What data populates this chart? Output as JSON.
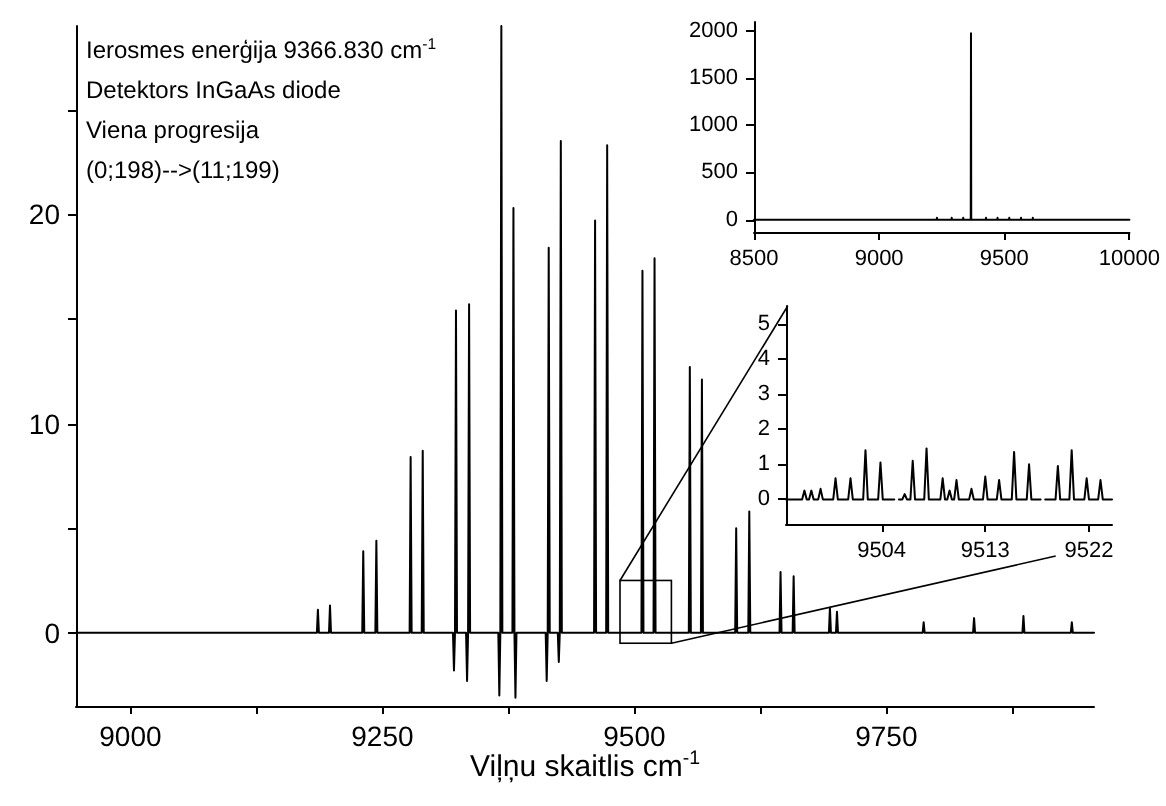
{
  "chart_data": [
    {
      "type": "line",
      "xlabel": "Viļņu skaitlis cm$^{-1}$",
      "annotations": [
        "Ierosmes enerģija 9366.830 cm$^{-1}$",
        "Detektors InGaAs diode",
        "Viena progresija",
        "(0;198)-->(11;199)"
      ],
      "x": [
        8946,
        9185,
        9186,
        9187,
        9197,
        9198,
        9199,
        9230,
        9231,
        9232,
        9243,
        9244,
        9245,
        9277,
        9278,
        9279,
        9289,
        9290,
        9291,
        9320,
        9321,
        9322,
        9323,
        9324,
        9333,
        9334,
        9335,
        9336,
        9337,
        9365,
        9366,
        9367,
        9368,
        9369,
        9379,
        9380,
        9381,
        9382,
        9383,
        9412,
        9413,
        9414,
        9415,
        9416,
        9424,
        9425,
        9426,
        9427,
        9428,
        9460,
        9461,
        9462,
        9472,
        9473,
        9474,
        9507,
        9508,
        9509,
        9519,
        9520,
        9521,
        9554,
        9555,
        9556,
        9566,
        9567,
        9568,
        9600,
        9601,
        9602,
        9613,
        9614,
        9615,
        9644,
        9645,
        9646,
        9657,
        9658,
        9659,
        9693,
        9694,
        9695,
        9700,
        9701,
        9702,
        9786,
        9787,
        9788,
        9836,
        9837,
        9838,
        9885,
        9886,
        9887,
        9933,
        9934,
        9935,
        9956
      ],
      "series": [
        {
          "color": "#000000",
          "values": [
            0,
            0,
            1.1,
            0,
            0,
            1.3,
            0,
            0,
            3.9,
            0,
            0,
            4.4,
            0,
            0,
            8.4,
            0,
            0,
            8.7,
            0,
            0,
            -1.8,
            0,
            15.4,
            0,
            0,
            -2.3,
            0,
            15.7,
            0,
            0,
            -3.0,
            0,
            29,
            0,
            0,
            20.3,
            0,
            -3.1,
            0,
            0,
            -2.3,
            0,
            18.4,
            0,
            0,
            -1.4,
            0,
            23.5,
            0,
            0,
            19.7,
            0,
            0,
            23.3,
            0,
            0,
            17.3,
            0,
            0,
            17.9,
            0,
            0,
            12.7,
            0,
            0,
            12.1,
            0,
            0,
            5.0,
            0,
            0,
            5.8,
            0,
            0,
            2.9,
            0,
            0,
            2.7,
            0,
            0,
            1.2,
            0,
            0,
            1.0,
            0,
            0,
            0.5,
            0,
            0,
            0.7,
            0,
            0,
            0.8,
            0,
            0,
            0.5,
            0,
            0
          ]
        }
      ],
      "xlim": [
        8946,
        9956
      ],
      "ylim": [
        -3.5,
        29
      ],
      "xticks": [
        9000,
        {
          "value": 9125,
          "label": null
        },
        9250,
        {
          "value": 9375,
          "label": null
        },
        9500,
        {
          "value": 9625,
          "label": null
        },
        9750,
        {
          "value": 9875,
          "label": null
        }
      ],
      "yticks": [
        0,
        {
          "value": 5,
          "label": null
        },
        10,
        {
          "value": 15,
          "label": null
        },
        20,
        {
          "value": 25,
          "label": null
        }
      ]
    },
    {
      "type": "line",
      "x": [
        8500,
        9230,
        9231,
        9232,
        9289,
        9290,
        9291,
        9335,
        9336,
        9337,
        9366,
        9367,
        9368,
        9426,
        9427,
        9428,
        9472,
        9473,
        9474,
        9519,
        9520,
        9521,
        9566,
        9567,
        9568,
        9613,
        9614,
        9615,
        10000
      ],
      "series": [
        {
          "color": "#000000",
          "values": [
            0,
            0,
            20,
            0,
            0,
            20,
            0,
            0,
            20,
            0,
            0,
            1970,
            0,
            0,
            20,
            0,
            0,
            20,
            0,
            0,
            20,
            0,
            0,
            20,
            0,
            0,
            20,
            0,
            0
          ]
        }
      ],
      "xlim": [
        8500,
        10000
      ],
      "ylim": [
        -130,
        2090
      ],
      "xticks": [
        8500,
        9000,
        9500,
        10000
      ],
      "yticks": [
        0,
        500,
        1000,
        1500,
        2000
      ]
    },
    {
      "type": "line",
      "x": [
        9495.7,
        9497.1,
        9497.3,
        9497.5,
        9497.7,
        9497.9,
        9498.1,
        9498.5,
        9498.7,
        9498.9,
        9499.8,
        9500,
        9500.2,
        9501.1,
        9501.3,
        9501.5,
        9502.4,
        9502.6,
        9502.8,
        9503.7,
        9503.9,
        9504.1,
        9505.1,
        9505.3,
        9505.5,
        9505.8,
        9506,
        9506.2,
        9506.5,
        9506.7,
        9506.9,
        9507.7,
        9507.9,
        9508.1,
        9509.1,
        9509.3,
        9509.5,
        9509.7,
        9509.9,
        9510.1,
        9510.3,
        9510.5,
        9510.7,
        9511.6,
        9511.8,
        9512,
        9512.8,
        9513,
        9513.2,
        9514,
        9514.2,
        9514.4,
        9515.3,
        9515.5,
        9515.7,
        9516.6,
        9516.8,
        9517,
        9517.8,
        9518,
        9518.2,
        9519.1,
        9519.3,
        9519.5,
        9520.3,
        9520.5,
        9520.7,
        9521.6,
        9521.8,
        9522,
        9522.8,
        9523,
        9523.2,
        9524
      ],
      "series": [
        {
          "color": "#000000",
          "values": [
            0,
            0,
            0.25,
            0,
            0,
            0.25,
            0,
            0,
            0.3,
            0,
            0,
            0.6,
            0,
            0,
            0.6,
            0,
            0,
            1.4,
            0,
            0,
            1.05,
            0,
            0,
            null,
            0,
            0,
            0.15,
            0,
            0,
            1.1,
            0,
            0,
            1.45,
            0,
            0,
            0.6,
            0,
            0,
            0.25,
            0,
            0,
            0.55,
            0,
            0,
            0.3,
            0,
            0,
            0.65,
            0,
            0,
            0.55,
            0,
            0,
            1.35,
            0,
            0,
            1.0,
            0,
            0,
            null,
            0,
            0,
            0.95,
            0,
            0,
            1.4,
            0,
            0,
            0.6,
            0,
            0,
            0.55,
            0,
            0
          ]
        }
      ],
      "xlim": [
        9495.7,
        9524
      ],
      "ylim": [
        -0.7,
        5.5
      ],
      "xticks": [
        9504,
        9513,
        9522
      ],
      "yticks": [
        0,
        1,
        2,
        3,
        4,
        5
      ]
    }
  ]
}
